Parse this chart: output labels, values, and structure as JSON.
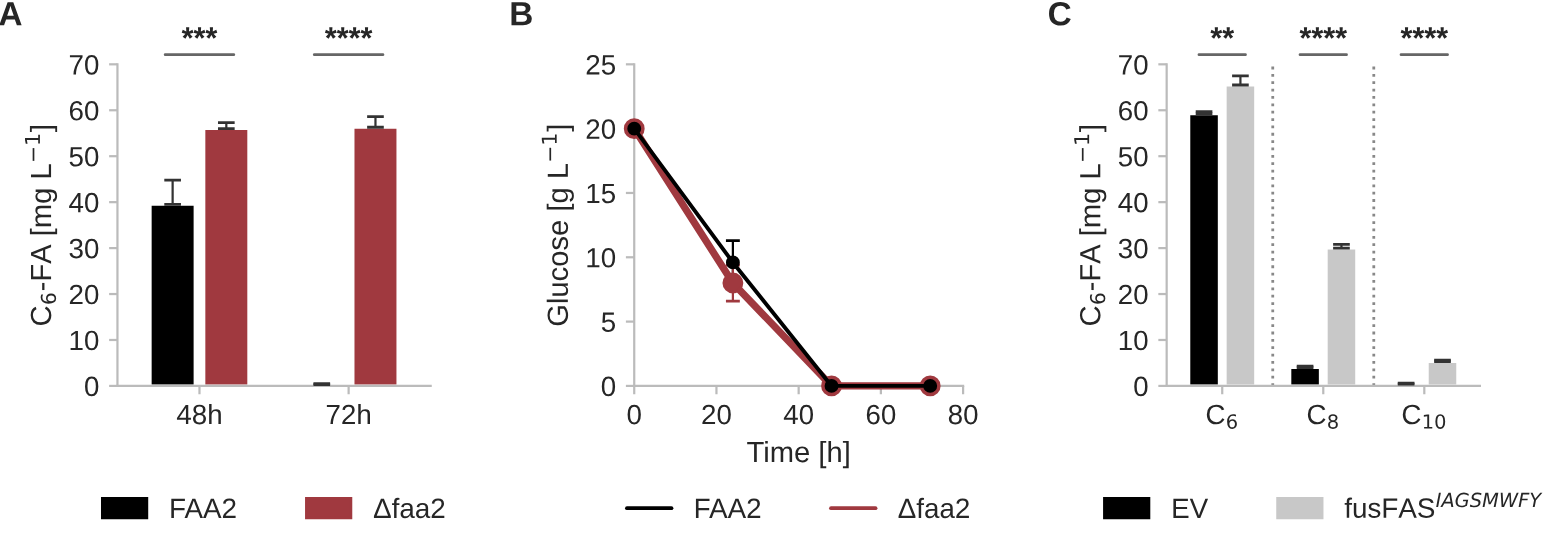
{
  "chart_data": [
    {
      "type": "bar",
      "title": "A",
      "ylabel": "C$_{6}$-FA [mg L$^{−1}$]",
      "categories": [
        "48h",
        "72h"
      ],
      "series": [
        {
          "name": "FAA2",
          "color": "#000000",
          "values": [
            39.5,
            0.3
          ],
          "errors": [
            5.3,
            0.2
          ]
        },
        {
          "name": "Δfaa2",
          "color": "#a0393f",
          "values": [
            56,
            56.3
          ],
          "errors": [
            1.3,
            2.3
          ]
        }
      ],
      "ylim": [
        0,
        70
      ],
      "yticks": [
        0,
        10,
        20,
        30,
        40,
        50,
        60,
        70
      ],
      "grid": false,
      "legend": "bottom",
      "annotations": [
        "***",
        "****"
      ]
    },
    {
      "type": "line",
      "title": "B",
      "xlabel": "Time [h]",
      "ylabel": "Glucose [g L$^{−1}$]",
      "series": [
        {
          "name": "FAA2",
          "color": "#000000",
          "x": [
            0,
            24,
            48,
            72
          ],
          "values": [
            20,
            9.6,
            0,
            0
          ],
          "errors": [
            null,
            1.7,
            null,
            null
          ]
        },
        {
          "name": "Δfaa2",
          "color": "#a0393f",
          "x": [
            0,
            24,
            48,
            72
          ],
          "values": [
            20,
            8,
            0,
            0
          ],
          "errors": [
            null,
            1.4,
            null,
            null
          ]
        }
      ],
      "xlim": [
        0,
        80
      ],
      "xticks": [
        0,
        20,
        40,
        60,
        80
      ],
      "ylim": [
        0,
        25
      ],
      "yticks": [
        0,
        5,
        10,
        15,
        20,
        25
      ],
      "marker": "circle",
      "line_style": "solid",
      "grid": false,
      "legend": "bottom"
    },
    {
      "type": "bar",
      "title": "C",
      "ylabel": "C$_{6}$-FA [mg L$^{−1}$]",
      "categories": [
        "C$_{6}$",
        "C$_{8}$",
        "C$_{10}$"
      ],
      "series": [
        {
          "name": "EV",
          "color": "#000000",
          "values": [
            59.2,
            4,
            0.4
          ],
          "errors": [
            0.5,
            0.3,
            0.2
          ]
        },
        {
          "name": "fusFAS$^{IAGSMWFY}$",
          "color": "#c8c8c8",
          "values": [
            65.5,
            30,
            5.3
          ],
          "errors": [
            2,
            0.8,
            0.3
          ]
        }
      ],
      "ylim": [
        0,
        70
      ],
      "yticks": [
        0,
        10,
        20,
        30,
        40,
        50,
        60,
        70
      ],
      "grid": false,
      "legend": "bottom",
      "annotations": [
        "**",
        "****",
        "****"
      ]
    }
  ]
}
